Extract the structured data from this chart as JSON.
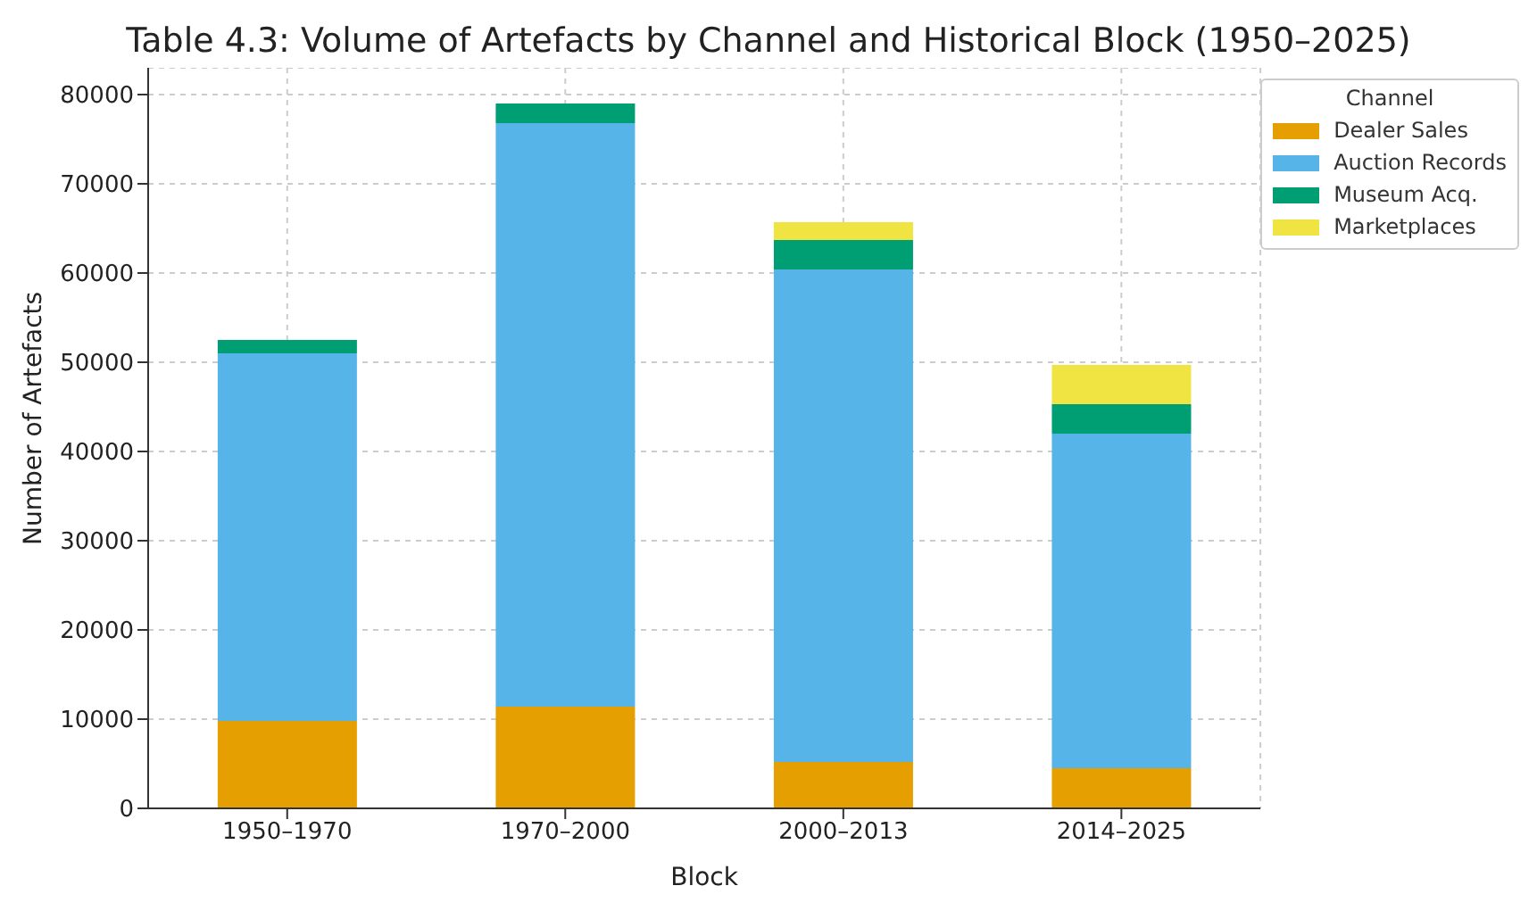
{
  "chart_data": {
    "type": "bar",
    "title": "Table 4.3: Volume of Artefacts by Channel and Historical Block (1950–2025)",
    "xlabel": "Block",
    "ylabel": "Number of Artefacts",
    "legend_title": "Channel",
    "categories": [
      "1950–1970",
      "1970–2000",
      "2000–2013",
      "2014–2025"
    ],
    "stacked": true,
    "series": [
      {
        "name": "Dealer Sales",
        "color": "#e69f00",
        "values": [
          9800,
          11400,
          5200,
          4500
        ]
      },
      {
        "name": "Auction Records",
        "color": "#56b4e9",
        "values": [
          41200,
          65400,
          55200,
          37500
        ]
      },
      {
        "name": "Museum Acq.",
        "color": "#009e73",
        "values": [
          1500,
          2200,
          3300,
          3300
        ]
      },
      {
        "name": "Marketplaces",
        "color": "#f0e442",
        "values": [
          0,
          0,
          2000,
          4400
        ]
      }
    ],
    "ylim": [
      0,
      83000
    ],
    "yticks": [
      0,
      10000,
      20000,
      30000,
      40000,
      50000,
      60000,
      70000,
      80000
    ],
    "grid": true,
    "legend": "top right"
  }
}
